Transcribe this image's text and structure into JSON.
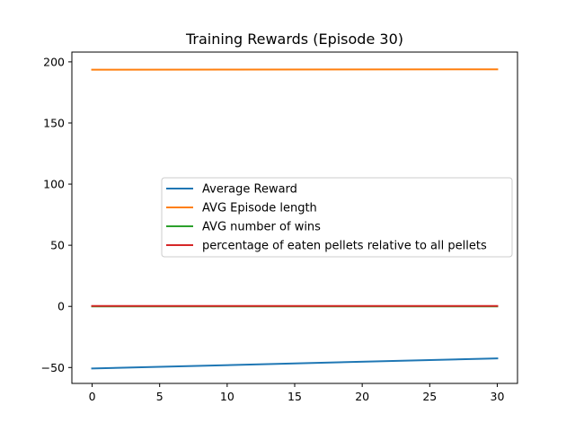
{
  "chart_data": {
    "type": "line",
    "title": "Training Rewards (Episode 30)",
    "xlabel": "",
    "ylabel": "",
    "xlim": [
      -1.5,
      31.5
    ],
    "ylim": [
      -63,
      208
    ],
    "xticks": [
      0,
      5,
      10,
      15,
      20,
      25,
      30
    ],
    "yticks": [
      -50,
      0,
      50,
      100,
      150,
      200
    ],
    "grid": false,
    "legend_position": "center-right",
    "series": [
      {
        "name": "Average Reward",
        "color": "#1f77b4",
        "x": [
          0,
          30
        ],
        "y": [
          -50.8,
          -42.5
        ]
      },
      {
        "name": "AVG Episode length",
        "color": "#ff7f0e",
        "x": [
          0,
          30
        ],
        "y": [
          193.6,
          193.9
        ]
      },
      {
        "name": "AVG number of wins",
        "color": "#2ca02c",
        "x": [
          0,
          30
        ],
        "y": [
          0,
          0
        ]
      },
      {
        "name": "percentage of eaten pellets relative to all pellets",
        "color": "#d62728",
        "x": [
          0,
          30
        ],
        "y": [
          0.3,
          0.3
        ]
      }
    ]
  }
}
